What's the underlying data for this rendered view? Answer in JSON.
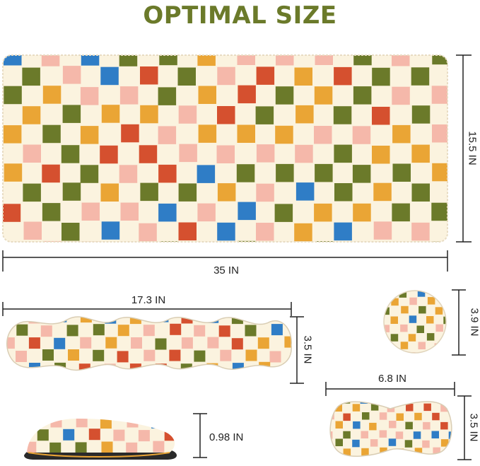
{
  "title": "OPTIMAL SIZE",
  "dimensions": {
    "mousepad_width": "35 IN",
    "mousepad_height": "15.5 IN",
    "keyboard_rest_width": "17.3 IN",
    "keyboard_rest_depth": "3.5 IN",
    "coaster_diameter": "3.9 IN",
    "mouse_rest_width": "6.8 IN",
    "mouse_rest_depth": "3.5 IN",
    "rest_thickness": "0.98 IN"
  },
  "colors": {
    "title": "#6b7a2a",
    "cream": "#fbf3df",
    "pink": "#f5b8aa",
    "orange_red": "#d5502f",
    "olive": "#6b7a2a",
    "blue": "#2f7dc6",
    "mustard": "#eaa535",
    "dark_base": "#2a2a2a"
  },
  "pattern": "checkered-squares"
}
